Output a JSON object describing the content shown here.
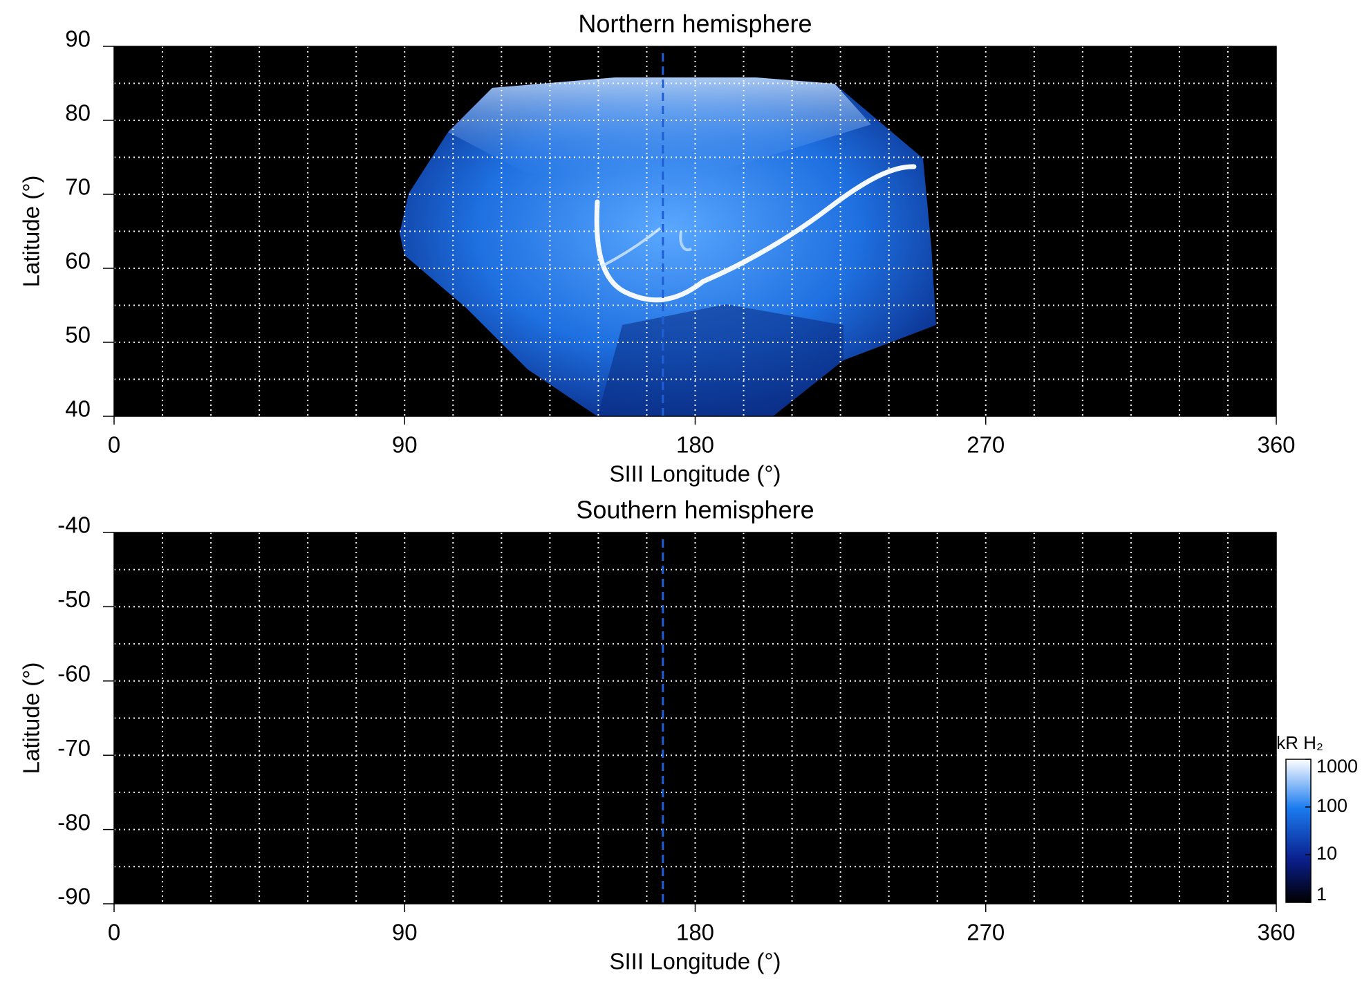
{
  "chart_data": [
    {
      "type": "map",
      "title": "Northern hemisphere",
      "xlabel": "SIII Longitude (°)",
      "ylabel": "Latitude (°)",
      "xlim": [
        0,
        360
      ],
      "ylim": [
        40,
        90
      ],
      "xticks": [
        0,
        90,
        180,
        270,
        360
      ],
      "yticks": [
        40,
        50,
        60,
        70,
        80,
        90
      ],
      "xgrid": [
        15,
        30,
        45,
        60,
        75,
        90,
        105,
        120,
        135,
        150,
        165,
        180,
        195,
        210,
        225,
        240,
        255,
        270,
        285,
        300,
        315,
        330,
        345
      ],
      "ygrid": [
        45,
        50,
        55,
        60,
        65,
        70,
        75,
        80,
        85
      ],
      "reference_line_x": 170,
      "reference_line_color": "#1f5fd6",
      "background": "#000000"
    },
    {
      "type": "map",
      "title": "Southern hemisphere",
      "xlabel": "SIII Longitude (°)",
      "ylabel": "Latitude (°)",
      "xlim": [
        0,
        360
      ],
      "ylim": [
        -90,
        -40
      ],
      "xticks": [
        0,
        90,
        180,
        270,
        360
      ],
      "yticks": [
        -90,
        -80,
        -70,
        -60,
        -50,
        -40
      ],
      "xgrid": [
        15,
        30,
        45,
        60,
        75,
        90,
        105,
        120,
        135,
        150,
        165,
        180,
        195,
        210,
        225,
        240,
        255,
        270,
        285,
        300,
        315,
        330,
        345
      ],
      "ygrid": [
        -85,
        -80,
        -75,
        -70,
        -65,
        -60,
        -55,
        -50,
        -45
      ],
      "reference_line_x": 170,
      "reference_line_color": "#1f5fd6",
      "background": "#000000",
      "colorbar": {
        "label": "kR H₂",
        "scale": "log",
        "lim": [
          1,
          1000
        ],
        "ticks": [
          1,
          10,
          100,
          1000
        ]
      }
    }
  ]
}
